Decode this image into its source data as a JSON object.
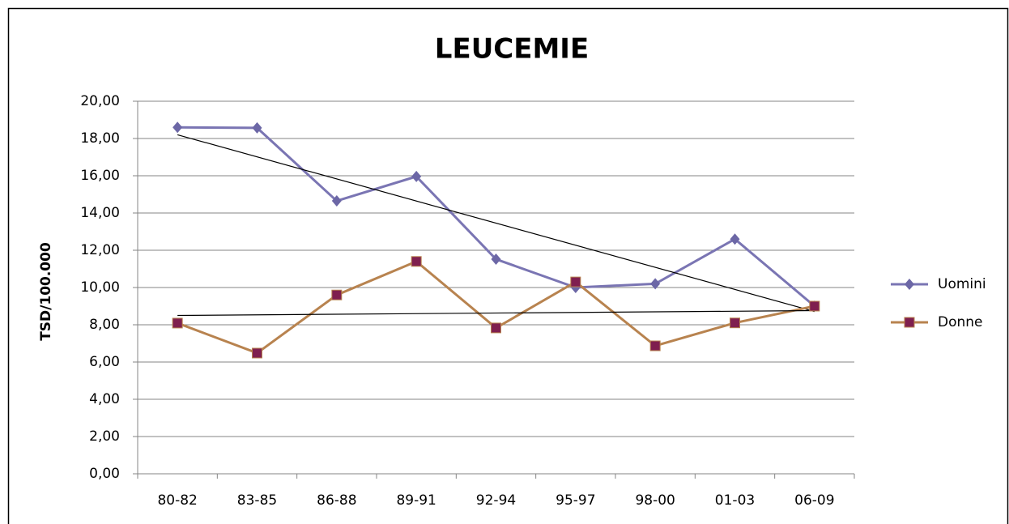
{
  "chart_data": {
    "type": "line",
    "title": "LEUCEMIE",
    "y_label": "TSD/100.000",
    "categories": [
      "80-82",
      "83-85",
      "86-88",
      "89-91",
      "92-94",
      "95-97",
      "98-00",
      "01-03",
      "06-09"
    ],
    "series": [
      {
        "name": "Uomini",
        "color": "#7a75b3",
        "marker_color": "#6c67a6",
        "marker": "diamond",
        "trendline": "linear",
        "values": [
          18.6,
          18.57,
          14.65,
          15.96,
          11.52,
          10.0,
          10.2,
          12.6,
          9.0
        ]
      },
      {
        "name": "Donne",
        "color": "#b8834f",
        "marker_color": "#7f1f4f",
        "marker": "square",
        "trendline": "linear",
        "values": [
          8.09,
          6.48,
          9.6,
          11.4,
          7.83,
          10.3,
          6.87,
          8.1,
          9.0
        ]
      }
    ],
    "trendline_color": "#000000",
    "ylim": [
      0,
      20
    ],
    "yticks": [
      {
        "value": 0,
        "label": "0,00"
      },
      {
        "value": 2,
        "label": "2,00"
      },
      {
        "value": 4,
        "label": "4,00"
      },
      {
        "value": 6,
        "label": "6,00"
      },
      {
        "value": 8,
        "label": "8,00"
      },
      {
        "value": 10,
        "label": "10,00"
      },
      {
        "value": 12,
        "label": "12,00"
      },
      {
        "value": 14,
        "label": "14,00"
      },
      {
        "value": 16,
        "label": "16,00"
      },
      {
        "value": 18,
        "label": "18,00"
      },
      {
        "value": 20,
        "label": "20,00"
      }
    ],
    "grid": true,
    "legend": "right"
  }
}
